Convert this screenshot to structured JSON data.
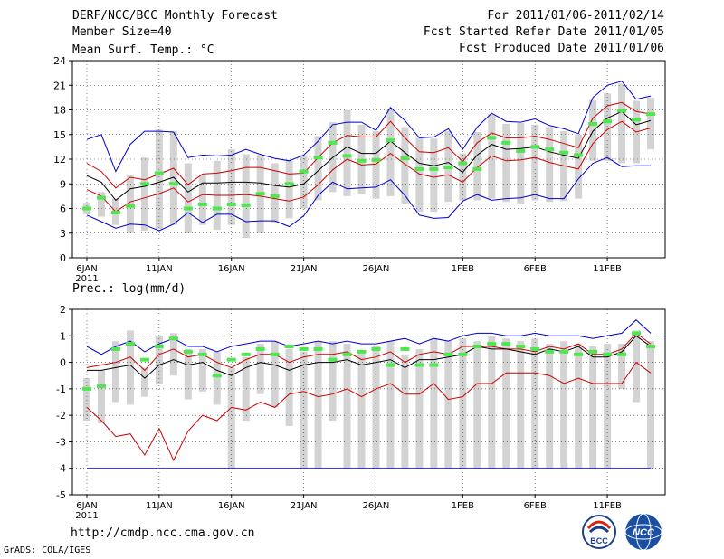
{
  "header": {
    "title": "DERF/NCC/BCC Monthly Forecast",
    "member_size": "Member Size=40",
    "variable": "Mean Surf. Temp.: °C",
    "forecast_period": "For 2011/01/06-2011/02/14",
    "start_ref_date": "Fcst Started Refer Date 2011/01/05",
    "produced_date": "Fcst Produced Date 2011/01/06"
  },
  "footer": {
    "url": "http://cmdp.ncc.cma.gov.cn",
    "grads_credit": "GrADS: COLA/IGES",
    "logo_left_text": "BCC",
    "logo_right_text": "NCC"
  },
  "colors": {
    "box": "#d3d3d3",
    "observed": "#4fe64f",
    "mean": "#000000",
    "std": "#cc0000",
    "range": "#0000cc",
    "grid": "#333333"
  },
  "chart_data": [
    {
      "type": "box-ensemble",
      "title": "Mean Surf. Temp.: °C",
      "xlabel": "",
      "ylabel": "°C",
      "ylim": [
        0,
        24
      ],
      "yticks": [
        0,
        3,
        6,
        9,
        12,
        15,
        18,
        21,
        24
      ],
      "x_day_count": 40,
      "x_ticks": [
        {
          "day": 1,
          "label": "6JAN",
          "sub": "2011"
        },
        {
          "day": 6,
          "label": "11JAN"
        },
        {
          "day": 11,
          "label": "16JAN"
        },
        {
          "day": 16,
          "label": "21JAN"
        },
        {
          "day": 21,
          "label": "26JAN"
        },
        {
          "day": 27,
          "label": "1FEB"
        },
        {
          "day": 32,
          "label": "6FEB"
        },
        {
          "day": 37,
          "label": "11FEB"
        }
      ],
      "grid": "dotted",
      "max": [
        14.4,
        15,
        10.5,
        13.8,
        15.4,
        15.4,
        15.3,
        12.2,
        12.5,
        12.4,
        12.5,
        13.2,
        12.6,
        12.1,
        11.8,
        12.5,
        14.2,
        16.2,
        16.5,
        16.5,
        15.5,
        18.3,
        16.7,
        14.6,
        14.7,
        15.7,
        13.2,
        15.9,
        17.6,
        16.6,
        16.5,
        16.9,
        16.1,
        15.7,
        15.1,
        19.5,
        21,
        21.5,
        19.3,
        19.7
      ],
      "mean_plus_sd": [
        11.5,
        10.5,
        8.5,
        9.8,
        9.5,
        10.2,
        10.9,
        8.9,
        10.2,
        10.3,
        10.6,
        11,
        11,
        10.6,
        10.2,
        10.3,
        12.2,
        14,
        14.9,
        14.7,
        14.7,
        16.6,
        14.6,
        12.9,
        12.8,
        13.4,
        11.7,
        14,
        15.2,
        14.6,
        14.6,
        14.8,
        14.4,
        13.9,
        13.4,
        17,
        18.5,
        18.9,
        17.8,
        17.5
      ],
      "mean": [
        10,
        9.2,
        7,
        8.4,
        8.7,
        9.2,
        9.8,
        8,
        9.1,
        9.1,
        9.2,
        9.2,
        9.1,
        8.8,
        8.6,
        9,
        10.6,
        12.2,
        13.5,
        12.7,
        12.7,
        14.2,
        12.8,
        11.5,
        11.2,
        11.6,
        10.4,
        12.5,
        13.8,
        13.2,
        13.3,
        13.5,
        12.9,
        12.5,
        12.1,
        15.4,
        17,
        17.8,
        16.2,
        16.7
      ],
      "mean_minus_sd": [
        8.3,
        7.5,
        5.6,
        6.8,
        7.3,
        7.8,
        8.5,
        6.8,
        7.7,
        7.6,
        7.6,
        7.7,
        7.5,
        7.2,
        6.9,
        7.4,
        8.9,
        10.7,
        12,
        11.3,
        11.4,
        12.7,
        11.4,
        10.2,
        9.8,
        10.1,
        9.2,
        11,
        12.4,
        11.8,
        11.9,
        12.2,
        11.6,
        11.2,
        10.8,
        13.9,
        15.6,
        16.6,
        15.3,
        15.8
      ],
      "min": [
        5.2,
        4.4,
        3.6,
        4.1,
        4,
        3.3,
        4.1,
        5.5,
        4.3,
        5.3,
        5.3,
        4.4,
        4.5,
        4.5,
        3.8,
        5.1,
        7.6,
        9.2,
        8.4,
        8.5,
        8.6,
        9.5,
        7.6,
        5.2,
        4.8,
        4.9,
        6.9,
        7.7,
        7,
        7.2,
        7.3,
        7.7,
        7.2,
        7.2,
        9.6,
        11.5,
        12.2,
        11.1,
        11.2,
        11.2
      ],
      "box_low": [
        5.3,
        5,
        4,
        3,
        3.3,
        3.5,
        4,
        3,
        4,
        3.4,
        4,
        2.4,
        3,
        4.3,
        4.8,
        6,
        7,
        8,
        7.5,
        7.8,
        7.2,
        7.5,
        6.6,
        5.6,
        5.6,
        6.8,
        7,
        7,
        7.2,
        6.8,
        6.5,
        7,
        6.8,
        6.9,
        7.2,
        11.8,
        11.8,
        11.5,
        11.5,
        13.2
      ],
      "box_high": [
        6.7,
        8,
        7.2,
        10,
        12.2,
        15.6,
        15.4,
        11.5,
        10,
        11.8,
        13.2,
        12.6,
        12.5,
        11.5,
        11.8,
        12.5,
        14.8,
        16.5,
        18,
        16.2,
        15.4,
        18,
        15.9,
        14.6,
        14.5,
        15.4,
        12.7,
        15.3,
        17.5,
        16.3,
        16.4,
        16.2,
        15.9,
        15.4,
        15,
        19.2,
        20,
        21.2,
        19.1,
        19.5
      ],
      "observed": [
        6,
        7.3,
        5.5,
        6.3,
        9,
        10.3,
        9,
        6,
        6.5,
        6,
        6.5,
        6.4,
        7.8,
        7.5,
        9,
        10.5,
        12.2,
        14,
        12.4,
        11.8,
        11.9,
        14.3,
        12.1,
        10.8,
        10.8,
        11,
        11.5,
        10.8,
        14.6,
        14,
        13,
        13.5,
        13.2,
        12.8,
        12.5,
        16.3,
        16.6,
        17.9,
        16.8,
        17.5
      ]
    },
    {
      "type": "box-ensemble",
      "title": "Prec.: log(mm/d)",
      "xlabel": "",
      "ylabel": "log(mm/d)",
      "ylim": [
        -5,
        2
      ],
      "yticks": [
        -5,
        -4,
        -3,
        -2,
        -1,
        0,
        1,
        2
      ],
      "x_day_count": 40,
      "x_ticks": [
        {
          "day": 1,
          "label": "6JAN",
          "sub": "2011"
        },
        {
          "day": 6,
          "label": "11JAN"
        },
        {
          "day": 11,
          "label": "16JAN"
        },
        {
          "day": 16,
          "label": "21JAN"
        },
        {
          "day": 21,
          "label": "26JAN"
        },
        {
          "day": 27,
          "label": "1FEB"
        },
        {
          "day": 32,
          "label": "6FEB"
        },
        {
          "day": 37,
          "label": "11FEB"
        }
      ],
      "grid": "dotted",
      "max": [
        0.6,
        0.3,
        0.6,
        0.8,
        0.4,
        0.7,
        0.9,
        0.6,
        0.6,
        0.4,
        0.6,
        0.7,
        0.8,
        0.8,
        0.6,
        0.7,
        0.8,
        0.7,
        0.8,
        0.7,
        0.7,
        0.8,
        0.9,
        0.7,
        0.9,
        0.8,
        1,
        1.1,
        1.1,
        1,
        1,
        1.1,
        1,
        1,
        1,
        0.9,
        1,
        1.1,
        1.6,
        1.1
      ],
      "mean_plus_sd": [
        -0.2,
        -0.1,
        0,
        0.2,
        -0.3,
        0.3,
        0.5,
        0.2,
        0.3,
        0,
        -0.2,
        0.1,
        0.3,
        0.3,
        0,
        0.2,
        0.3,
        0.3,
        0.4,
        0.1,
        0.2,
        0.4,
        0,
        0.3,
        0.4,
        0.3,
        0.6,
        0.6,
        0.6,
        0.5,
        0.5,
        0.4,
        0.6,
        0.5,
        0.7,
        0.3,
        0.3,
        0.5,
        1.1,
        0.7
      ],
      "mean": [
        -0.3,
        -0.3,
        -0.2,
        -0.1,
        -0.6,
        -0.1,
        0.1,
        -0.1,
        0,
        -0.3,
        -0.5,
        -0.2,
        0,
        -0.1,
        -0.3,
        -0.1,
        0,
        0,
        0.1,
        -0.1,
        0,
        0.1,
        -0.2,
        0.1,
        0.1,
        0.2,
        0.3,
        0.6,
        0.5,
        0.5,
        0.4,
        0.3,
        0.5,
        0.4,
        0.6,
        0.2,
        0.2,
        0.4,
        1,
        0.6
      ],
      "mean_minus_sd": [
        -1.7,
        -2.2,
        -2.8,
        -2.7,
        -3.5,
        -2.5,
        -3.7,
        -2.6,
        -2.0,
        -2.2,
        -1.7,
        -1.8,
        -1.5,
        -1.7,
        -1.2,
        -1.1,
        -1.3,
        -1.2,
        -1.0,
        -1.3,
        -1.0,
        -0.8,
        -1.2,
        -1.2,
        -0.8,
        -1.4,
        -1.3,
        -0.8,
        -0.8,
        -0.4,
        -0.4,
        -0.4,
        -0.5,
        -0.8,
        -0.6,
        -0.8,
        -0.8,
        -0.8,
        0,
        -0.4
      ],
      "min": [
        -4,
        -4,
        -4,
        -4,
        -4,
        -4,
        -4,
        -4,
        -4,
        -4,
        -4,
        -4,
        -4,
        -4,
        -4,
        -4,
        -4,
        -4,
        -4,
        -4,
        -4,
        -4,
        -4,
        -4,
        -4,
        -4,
        -4,
        -4,
        -4,
        -4,
        -4,
        -4,
        -4,
        -4,
        -4,
        -4,
        -4,
        -4,
        -4,
        -4
      ],
      "box_low": [
        -2.2,
        -2.3,
        -1.5,
        -1.6,
        -1.3,
        -0.8,
        -0.5,
        -1.4,
        -1.1,
        -1.6,
        -4,
        -2.2,
        -1.2,
        -1.7,
        -2.4,
        -4,
        -4,
        -2.2,
        -4,
        -4,
        -4,
        -4,
        -4,
        -4,
        -4,
        -4,
        -4,
        -4,
        -4,
        -4,
        -4,
        -4,
        -4,
        -4,
        -4,
        -4,
        -4,
        -1,
        -1.5,
        -4
      ],
      "box_high": [
        -0.6,
        -0.3,
        0.8,
        1.2,
        -0.2,
        1,
        1.1,
        0.5,
        0.5,
        0.4,
        -0.2,
        0.2,
        0.7,
        0.8,
        0.5,
        0.4,
        0.8,
        0.8,
        0.7,
        0.4,
        0.6,
        0.8,
        0.3,
        0.5,
        0.9,
        0.8,
        0.9,
        0.8,
        1,
        0.9,
        0.8,
        0.9,
        0.7,
        0.8,
        0.7,
        0.6,
        0.7,
        0.7,
        1.2,
        0.8
      ],
      "observed": [
        -1,
        -0.9,
        0.5,
        0.7,
        0.1,
        0.6,
        0.9,
        0.4,
        0.3,
        -0.5,
        0.1,
        0.3,
        0.5,
        0.3,
        0.6,
        0.5,
        0.5,
        0.1,
        0.3,
        0.4,
        0.5,
        -0.1,
        0.5,
        -0.1,
        -0.1,
        0.3,
        0.3,
        0.6,
        0.7,
        0.7,
        0.6,
        0.5,
        0.4,
        0.4,
        0.3,
        0.4,
        0.3,
        0.3,
        1.1,
        0.6
      ]
    }
  ]
}
